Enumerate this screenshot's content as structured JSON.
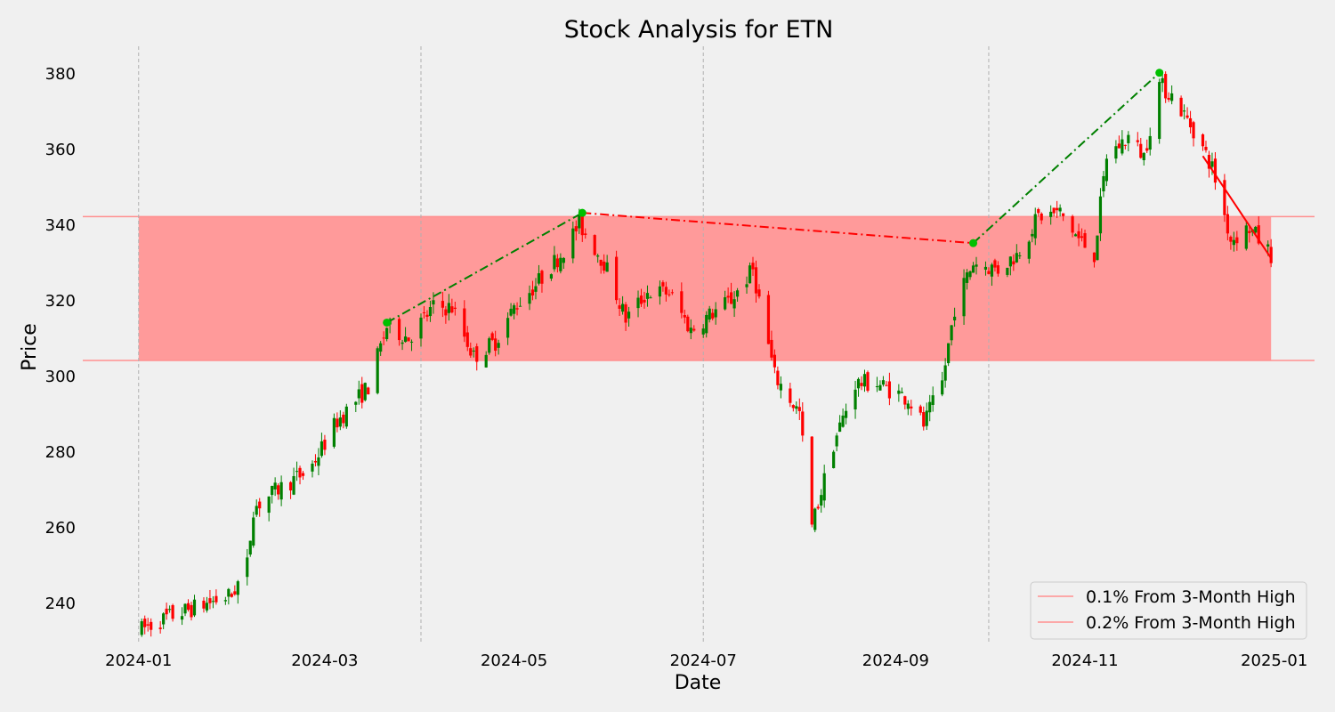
{
  "chart_data": {
    "type": "candlestick",
    "title": "Stock Analysis for ETN",
    "xlabel": "Date",
    "ylabel": "Price",
    "xlim": [
      "2023-12-14",
      "2025-01-14"
    ],
    "ylim": [
      229,
      387
    ],
    "grid": "x-dashed",
    "x_ticks": [
      "2024-01",
      "2024-03",
      "2024-05",
      "2024-07",
      "2024-09",
      "2024-11",
      "2025-01"
    ],
    "y_ticks": [
      240,
      260,
      280,
      300,
      320,
      340,
      360,
      380
    ],
    "vertical_markers": [
      "2024-01-01",
      "2024-04-01",
      "2024-07-01",
      "2024-10-01"
    ],
    "band": {
      "from": "2024-01-01",
      "to": "2024-12-31",
      "low": 304,
      "high": 342,
      "color": "#ff9a9a"
    },
    "hlines": [
      {
        "value": 342,
        "color": "#ff8f8f",
        "label": "0.1% From 3-Month High"
      },
      {
        "value": 304,
        "color": "#ff8f8f",
        "label": "0.2% From 3-Month High"
      }
    ],
    "colors": {
      "up": "#008000",
      "down": "#ff0000",
      "marker": "#00c000",
      "background": "#f0f0f0"
    },
    "legend": {
      "placement": "lower-right",
      "entries": [
        "0.1% From 3-Month High",
        "0.2% From 3-Month High"
      ]
    },
    "trend_lines": [
      {
        "color": "#008000",
        "style": "dash-dot",
        "points": [
          [
            "2024-03-21",
            314
          ],
          [
            "2024-05-23",
            343
          ]
        ]
      },
      {
        "color": "#ff0000",
        "style": "dash-dot",
        "points": [
          [
            "2024-05-23",
            343
          ],
          [
            "2024-09-26",
            335
          ]
        ]
      },
      {
        "color": "#008000",
        "style": "dash-dot",
        "points": [
          [
            "2024-09-26",
            335
          ],
          [
            "2024-11-25",
            380
          ]
        ]
      },
      {
        "color": "#ff0000",
        "style": "solid",
        "points": [
          [
            "2024-12-09",
            358
          ],
          [
            "2024-12-31",
            331
          ]
        ]
      }
    ],
    "peak_markers": [
      {
        "date": "2024-03-21",
        "price": 314
      },
      {
        "date": "2024-05-23",
        "price": 343
      },
      {
        "date": "2024-09-26",
        "price": 335
      },
      {
        "date": "2024-11-25",
        "price": 380
      }
    ],
    "anchors": [
      [
        "2024-01-02",
        233
      ],
      [
        "2024-01-10",
        236
      ],
      [
        "2024-01-20",
        239
      ],
      [
        "2024-01-31",
        242
      ],
      [
        "2024-02-05",
        250
      ],
      [
        "2024-02-07",
        265
      ],
      [
        "2024-02-15",
        270
      ],
      [
        "2024-02-25",
        275
      ],
      [
        "2024-03-05",
        288
      ],
      [
        "2024-03-15",
        297
      ],
      [
        "2024-03-21",
        313
      ],
      [
        "2024-03-28",
        310
      ],
      [
        "2024-04-05",
        318
      ],
      [
        "2024-04-11",
        318
      ],
      [
        "2024-04-18",
        305
      ],
      [
        "2024-04-25",
        309
      ],
      [
        "2024-05-01",
        318
      ],
      [
        "2024-05-08",
        324
      ],
      [
        "2024-05-16",
        332
      ],
      [
        "2024-05-22",
        340
      ],
      [
        "2024-05-30",
        330
      ],
      [
        "2024-06-06",
        315
      ],
      [
        "2024-06-13",
        322
      ],
      [
        "2024-06-20",
        322
      ],
      [
        "2024-06-27",
        312
      ],
      [
        "2024-07-03",
        316
      ],
      [
        "2024-07-10",
        320
      ],
      [
        "2024-07-17",
        328
      ],
      [
        "2024-07-24",
        300
      ],
      [
        "2024-08-01",
        290
      ],
      [
        "2024-08-05",
        260
      ],
      [
        "2024-08-12",
        282
      ],
      [
        "2024-08-19",
        298
      ],
      [
        "2024-08-26",
        298
      ],
      [
        "2024-09-05",
        294
      ],
      [
        "2024-09-10",
        287
      ],
      [
        "2024-09-16",
        298
      ],
      [
        "2024-09-20",
        318
      ],
      [
        "2024-09-26",
        330
      ],
      [
        "2024-10-04",
        328
      ],
      [
        "2024-10-10",
        332
      ],
      [
        "2024-10-17",
        342
      ],
      [
        "2024-10-24",
        343
      ],
      [
        "2024-10-30",
        336
      ],
      [
        "2024-11-04",
        332
      ],
      [
        "2024-11-08",
        358
      ],
      [
        "2024-11-15",
        363
      ],
      [
        "2024-11-20",
        358
      ],
      [
        "2024-11-25",
        377
      ],
      [
        "2024-11-29",
        374
      ],
      [
        "2024-12-06",
        365
      ],
      [
        "2024-12-12",
        355
      ],
      [
        "2024-12-18",
        336
      ],
      [
        "2024-12-24",
        339
      ],
      [
        "2024-12-31",
        332
      ]
    ]
  }
}
